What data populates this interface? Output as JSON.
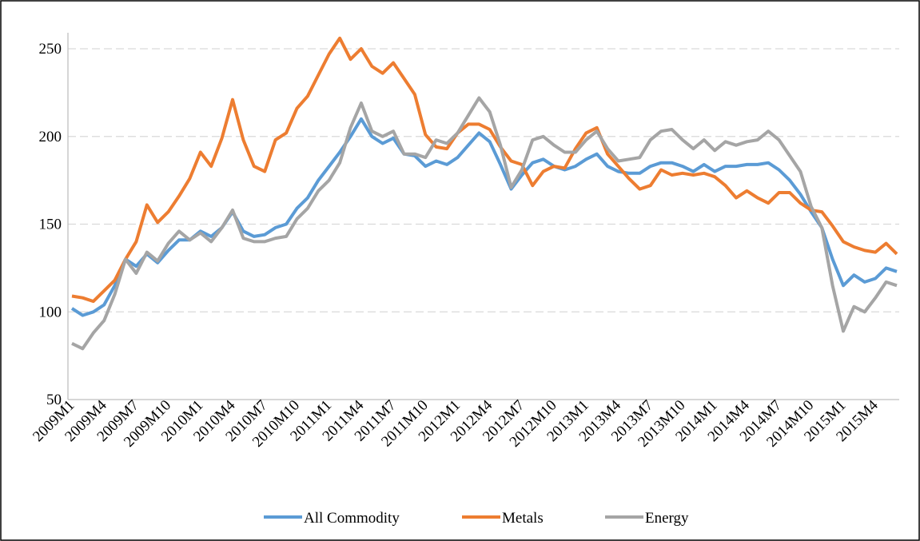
{
  "chart_data": {
    "type": "line",
    "categories": [
      "2009M1",
      null,
      null,
      "2009M4",
      null,
      null,
      "2009M7",
      null,
      null,
      "2009M10",
      null,
      null,
      "2010M1",
      null,
      null,
      "2010M4",
      null,
      null,
      "2010M7",
      null,
      null,
      "2010M10",
      null,
      null,
      "2011M1",
      null,
      null,
      "2011M4",
      null,
      null,
      "2011M7",
      null,
      null,
      "2011M10",
      null,
      null,
      "2012M1",
      null,
      null,
      "2012M4",
      null,
      null,
      "2012M7",
      null,
      null,
      "2012M10",
      null,
      null,
      "2013M1",
      null,
      null,
      "2013M4",
      null,
      null,
      "2013M7",
      null,
      null,
      "2013M10",
      null,
      null,
      "2014M1",
      null,
      null,
      "2014M4",
      null,
      null,
      "2014M7",
      null,
      null,
      "2014M10",
      null,
      null,
      "2015M1",
      null,
      null,
      "2015M4",
      null,
      null
    ],
    "series": [
      {
        "name": "All Commodity",
        "color": "#5b9bd5",
        "values": [
          102,
          98,
          100,
          104,
          115,
          130,
          126,
          133,
          128,
          135,
          141,
          141,
          146,
          143,
          148,
          157,
          146,
          143,
          144,
          148,
          150,
          159,
          165,
          175,
          183,
          191,
          200,
          210,
          200,
          196,
          199,
          190,
          189,
          183,
          186,
          184,
          188,
          195,
          202,
          197,
          184,
          170,
          178,
          185,
          187,
          183,
          181,
          183,
          187,
          190,
          183,
          180,
          179,
          179,
          183,
          185,
          185,
          183,
          180,
          184,
          180,
          183,
          183,
          184,
          184,
          185,
          181,
          175,
          167,
          157,
          148,
          130,
          115,
          121,
          117,
          119,
          125,
          123
        ]
      },
      {
        "name": "Metals",
        "color": "#ed7d31",
        "values": [
          109,
          108,
          106,
          112,
          118,
          130,
          140,
          161,
          151,
          157,
          166,
          176,
          191,
          183,
          199,
          221,
          198,
          183,
          180,
          198,
          202,
          216,
          223,
          235,
          247,
          256,
          244,
          250,
          240,
          236,
          242,
          233,
          224,
          201,
          194,
          193,
          202,
          207,
          207,
          204,
          194,
          186,
          184,
          172,
          180,
          183,
          182,
          193,
          202,
          205,
          190,
          183,
          176,
          170,
          172,
          181,
          178,
          179,
          178,
          179,
          177,
          172,
          165,
          169,
          165,
          162,
          168,
          168,
          162,
          158,
          157,
          149,
          140,
          137,
          135,
          134,
          139,
          133
        ]
      },
      {
        "name": "Energy",
        "color": "#a5a5a5",
        "values": [
          82,
          79,
          88,
          95,
          110,
          130,
          122,
          134,
          129,
          139,
          146,
          141,
          145,
          140,
          148,
          158,
          142,
          140,
          140,
          142,
          143,
          153,
          159,
          169,
          175,
          185,
          205,
          219,
          203,
          200,
          203,
          190,
          190,
          188,
          198,
          196,
          202,
          212,
          222,
          214,
          195,
          171,
          181,
          198,
          200,
          195,
          191,
          191,
          198,
          203,
          193,
          186,
          187,
          188,
          198,
          203,
          204,
          198,
          193,
          198,
          192,
          197,
          195,
          197,
          198,
          203,
          198,
          189,
          180,
          160,
          148,
          115,
          89,
          103,
          100,
          108,
          117,
          115
        ]
      }
    ],
    "ylim": [
      50,
      250
    ],
    "yticks": [
      50,
      100,
      150,
      200,
      250
    ],
    "grid": true,
    "legend": "bottom"
  }
}
